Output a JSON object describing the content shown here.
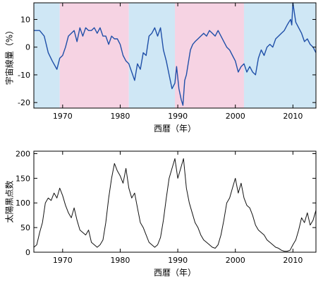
{
  "chart_data": [
    {
      "type": "line",
      "xlabel": "西暦（年）",
      "ylabel": "宇宙線量（%）",
      "xlim": [
        1965,
        2014
      ],
      "ylim": [
        -22,
        16
      ],
      "xticks": [
        1970,
        1980,
        1990,
        2000,
        2010
      ],
      "yticks": [
        10,
        0,
        -10,
        -20
      ],
      "grid": false,
      "line_color": "#1f4fa8",
      "background_bands": [
        {
          "from": 1965,
          "to": 1969.5,
          "color": "#cfe7f5"
        },
        {
          "from": 1969.5,
          "to": 1981.5,
          "color": "#f6d3e3"
        },
        {
          "from": 1981.5,
          "to": 1989.5,
          "color": "#cfe7f5"
        },
        {
          "from": 1989.5,
          "to": 2001.5,
          "color": "#f6d3e3"
        },
        {
          "from": 2001.5,
          "to": 2014,
          "color": "#cfe7f5"
        }
      ],
      "x": [
        1965.0,
        1966.0,
        1966.8,
        1967.5,
        1968.2,
        1969.0,
        1969.5,
        1970.0,
        1970.5,
        1971.0,
        1971.5,
        1972.0,
        1972.5,
        1973.0,
        1973.5,
        1974.0,
        1974.5,
        1975.0,
        1975.5,
        1976.0,
        1976.5,
        1977.0,
        1977.5,
        1978.0,
        1978.5,
        1979.0,
        1979.5,
        1980.0,
        1980.5,
        1981.0,
        1981.5,
        1982.0,
        1982.5,
        1983.0,
        1983.5,
        1984.0,
        1984.5,
        1985.0,
        1985.5,
        1986.0,
        1986.5,
        1987.0,
        1987.5,
        1988.0,
        1988.5,
        1989.0,
        1989.5,
        1989.8,
        1990.2,
        1990.6,
        1990.9,
        1991.2,
        1991.5,
        1991.8,
        1992.2,
        1992.6,
        1993.0,
        1993.5,
        1994.0,
        1994.5,
        1995.0,
        1995.5,
        1996.0,
        1996.5,
        1997.0,
        1997.5,
        1998.0,
        1998.5,
        1999.0,
        1999.5,
        2000.0,
        2000.5,
        2001.0,
        2001.5,
        2002.0,
        2002.5,
        2003.0,
        2003.5,
        2004.0,
        2004.5,
        2005.0,
        2005.5,
        2006.0,
        2006.5,
        2007.0,
        2007.5,
        2008.0,
        2008.5,
        2009.0,
        2009.3,
        2009.6,
        2009.8,
        2010.0,
        2010.5,
        2011.0,
        2011.5,
        2012.0,
        2012.5,
        2013.0,
        2013.5,
        2014.0
      ],
      "y": [
        6,
        6,
        4,
        -2,
        -5,
        -8,
        -4,
        -3,
        0,
        4,
        5,
        6,
        2,
        7,
        4,
        7,
        6,
        6,
        7,
        5,
        7,
        4,
        4,
        1,
        4,
        3,
        3,
        1,
        -3,
        -5,
        -6,
        -9,
        -12,
        -6,
        -8,
        -2,
        -3,
        4,
        5,
        7,
        4,
        7,
        -1,
        -5,
        -10,
        -15,
        -13,
        -7,
        -15,
        -19,
        -21,
        -12,
        -10,
        -6,
        -1,
        1,
        2,
        3,
        4,
        5,
        4,
        6,
        5,
        4,
        6,
        4,
        2,
        0,
        -1,
        -3,
        -5,
        -9,
        -7,
        -6,
        -9,
        -7,
        -9,
        -10,
        -4,
        -1,
        -3,
        0,
        1,
        0,
        3,
        4,
        5,
        6,
        8,
        9,
        10,
        8,
        16,
        9,
        7,
        5,
        2,
        3,
        1,
        0,
        -2
      ]
    },
    {
      "type": "line",
      "xlabel": "西暦（年）",
      "ylabel": "太陽黒点数",
      "xlim": [
        1965,
        2014
      ],
      "ylim": [
        0,
        205
      ],
      "xticks": [
        1970,
        1980,
        1990,
        2000,
        2010
      ],
      "yticks": [
        200,
        150,
        100,
        50,
        0
      ],
      "grid": false,
      "line_color": "#111111",
      "x": [
        1965.0,
        1965.5,
        1966.0,
        1966.5,
        1967.0,
        1967.5,
        1968.0,
        1968.5,
        1969.0,
        1969.5,
        1970.0,
        1970.5,
        1971.0,
        1971.5,
        1972.0,
        1972.5,
        1973.0,
        1973.5,
        1974.0,
        1974.5,
        1975.0,
        1975.5,
        1976.0,
        1976.5,
        1977.0,
        1977.5,
        1978.0,
        1978.5,
        1979.0,
        1979.5,
        1980.0,
        1980.5,
        1981.0,
        1981.5,
        1982.0,
        1982.5,
        1983.0,
        1983.5,
        1984.0,
        1984.5,
        1985.0,
        1985.5,
        1986.0,
        1986.5,
        1987.0,
        1987.5,
        1988.0,
        1988.5,
        1989.0,
        1989.5,
        1990.0,
        1990.5,
        1991.0,
        1991.5,
        1992.0,
        1992.5,
        1993.0,
        1993.5,
        1994.0,
        1994.5,
        1995.0,
        1995.5,
        1996.0,
        1996.5,
        1997.0,
        1997.5,
        1998.0,
        1998.5,
        1999.0,
        1999.5,
        2000.0,
        2000.5,
        2001.0,
        2001.5,
        2002.0,
        2002.5,
        2003.0,
        2003.5,
        2004.0,
        2004.5,
        2005.0,
        2005.5,
        2006.0,
        2006.5,
        2007.0,
        2007.5,
        2008.0,
        2008.5,
        2009.0,
        2009.5,
        2010.0,
        2010.5,
        2011.0,
        2011.5,
        2012.0,
        2012.5,
        2013.0,
        2013.5,
        2014.0
      ],
      "y": [
        10,
        15,
        40,
        60,
        100,
        110,
        105,
        120,
        110,
        130,
        115,
        95,
        80,
        70,
        90,
        65,
        45,
        40,
        35,
        45,
        20,
        15,
        10,
        15,
        25,
        60,
        110,
        150,
        180,
        165,
        155,
        140,
        170,
        130,
        110,
        120,
        90,
        60,
        50,
        35,
        20,
        15,
        10,
        15,
        30,
        65,
        110,
        150,
        170,
        190,
        150,
        170,
        190,
        130,
        100,
        80,
        60,
        50,
        35,
        25,
        20,
        15,
        10,
        8,
        15,
        35,
        65,
        100,
        110,
        130,
        150,
        120,
        140,
        110,
        95,
        90,
        75,
        55,
        45,
        40,
        35,
        25,
        20,
        15,
        10,
        8,
        4,
        2,
        2,
        4,
        15,
        25,
        45,
        70,
        60,
        80,
        55,
        65,
        85
      ]
    }
  ]
}
